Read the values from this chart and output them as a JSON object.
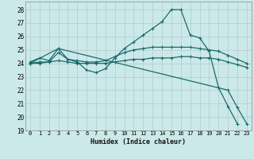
{
  "background_color": "#cce9e9",
  "grid_color": "#b0cccc",
  "line_color": "#1a6b6b",
  "xlabel": "Humidex (Indice chaleur)",
  "xlim": [
    -0.5,
    23.5
  ],
  "ylim": [
    19,
    28.6
  ],
  "xticks": [
    0,
    1,
    2,
    3,
    4,
    5,
    6,
    7,
    8,
    9,
    10,
    11,
    12,
    13,
    14,
    15,
    16,
    17,
    18,
    19,
    20,
    21,
    22,
    23
  ],
  "yticks": [
    19,
    20,
    21,
    22,
    23,
    24,
    25,
    26,
    27,
    28
  ],
  "series": [
    {
      "x": [
        0,
        1,
        2,
        3,
        4,
        5,
        6,
        7,
        8,
        9,
        10,
        11,
        12,
        13,
        14,
        15,
        16,
        17,
        18,
        19,
        20,
        21,
        22,
        23
      ],
      "y": [
        24.1,
        24.4,
        24.2,
        25.1,
        24.3,
        24.1,
        23.5,
        23.3,
        23.6,
        24.4,
        25.1,
        25.6,
        26.1,
        26.6,
        27.1,
        28.0,
        28.0,
        26.1,
        25.9,
        24.9,
        22.2,
        20.8,
        19.5,
        null
      ]
    },
    {
      "x": [
        0,
        1,
        2,
        3,
        4,
        5,
        6,
        7,
        8,
        9,
        10,
        11,
        12,
        13,
        14,
        15,
        16,
        17,
        18,
        19,
        20,
        21,
        22,
        23
      ],
      "y": [
        24.0,
        24.1,
        24.1,
        24.8,
        24.3,
        24.2,
        24.1,
        24.1,
        24.2,
        24.5,
        24.8,
        25.0,
        25.1,
        25.2,
        25.2,
        25.2,
        25.2,
        25.2,
        25.1,
        25.0,
        24.9,
        24.6,
        24.3,
        24.0
      ]
    },
    {
      "x": [
        0,
        1,
        2,
        3,
        4,
        5,
        6,
        7,
        8,
        9,
        10,
        11,
        12,
        13,
        14,
        15,
        16,
        17,
        18,
        19,
        20,
        21,
        22,
        23
      ],
      "y": [
        24.0,
        24.0,
        24.1,
        24.2,
        24.1,
        24.0,
        24.0,
        24.0,
        24.0,
        24.1,
        24.2,
        24.3,
        24.3,
        24.4,
        24.4,
        24.4,
        24.5,
        24.5,
        24.4,
        24.4,
        24.3,
        24.1,
        23.9,
        23.7
      ]
    },
    {
      "x": [
        0,
        3,
        21,
        22,
        23
      ],
      "y": [
        24.0,
        25.1,
        22.0,
        20.7,
        19.5
      ]
    }
  ]
}
